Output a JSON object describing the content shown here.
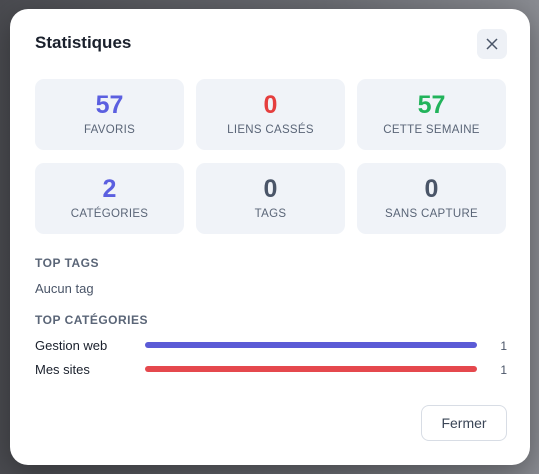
{
  "modal": {
    "title": "Statistiques",
    "stats": [
      {
        "value": 57,
        "label": "FAVORIS",
        "color": "#5b5fe0"
      },
      {
        "value": 0,
        "label": "LIENS CASSÉS",
        "color": "#e53e3e"
      },
      {
        "value": 57,
        "label": "CETTE SEMAINE",
        "color": "#22b35b"
      },
      {
        "value": 2,
        "label": "CATÉGORIES",
        "color": "#5b5fe0"
      },
      {
        "value": 0,
        "label": "TAGS",
        "color": "#4a5568"
      },
      {
        "value": 0,
        "label": "SANS CAPTURE",
        "color": "#4a5568"
      }
    ],
    "top_tags": {
      "heading": "TOP TAGS",
      "empty": "Aucun tag"
    },
    "top_categories": {
      "heading": "TOP CATÉGORIES",
      "items": [
        {
          "name": "Gestion web",
          "count": 1,
          "color": "#5b5bd6"
        },
        {
          "name": "Mes sites",
          "count": 1,
          "color": "#e5484d"
        }
      ]
    },
    "button": "Fermer"
  }
}
